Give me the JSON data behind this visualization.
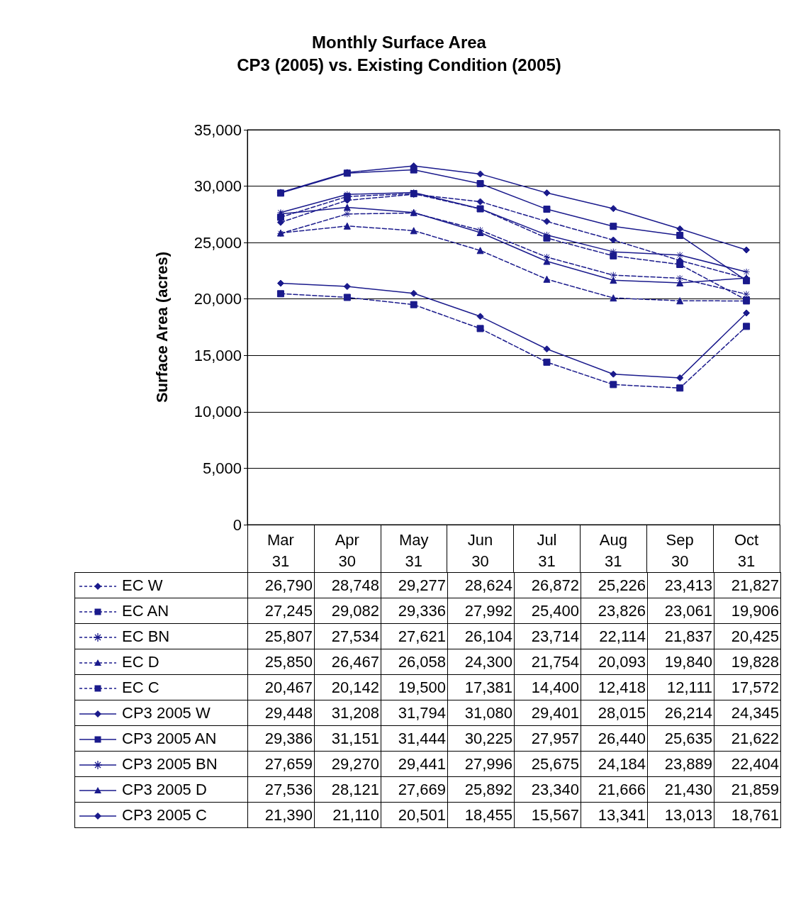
{
  "chart_data": {
    "type": "line",
    "title": "Monthly Surface Area\nCP3 (2005) vs. Existing Condition (2005)",
    "ylabel": "Surface Area (acres)",
    "categories": [
      "Mar\n31",
      "Apr\n30",
      "May\n31",
      "Jun\n30",
      "Jul\n31",
      "Aug\n31",
      "Sep\n30",
      "Oct\n31"
    ],
    "ylim": [
      0,
      35000
    ],
    "yticks": [
      0,
      {
        "value": 5000,
        "label": "5,000"
      },
      {
        "value": 10000,
        "label": "10,000"
      },
      {
        "value": 15000,
        "label": "15,000"
      },
      {
        "value": 20000,
        "label": "20,000"
      },
      {
        "value": 25000,
        "label": "25,000"
      },
      {
        "value": 30000,
        "label": "30,000"
      },
      {
        "value": 35000,
        "label": "35,000"
      }
    ],
    "grid": "y",
    "legend": "bottom",
    "series": [
      {
        "name": "EC W",
        "color": "#1a1a8c",
        "line_style": "dashed",
        "marker": "diamond",
        "values": [
          26790,
          28748,
          29277,
          28624,
          26872,
          25226,
          23413,
          21827
        ],
        "value_labels": [
          "26,790",
          "28,748",
          "29,277",
          "28,624",
          "26,872",
          "25,226",
          "23,413",
          "21,827"
        ]
      },
      {
        "name": "EC AN",
        "color": "#1a1a8c",
        "line_style": "dashed",
        "marker": "square",
        "values": [
          27245,
          29082,
          29336,
          27992,
          25400,
          23826,
          23061,
          19906
        ],
        "value_labels": [
          "27,245",
          "29,082",
          "29,336",
          "27,992",
          "25,400",
          "23,826",
          "23,061",
          "19,906"
        ]
      },
      {
        "name": "EC BN",
        "color": "#1a1a8c",
        "line_style": "dashed",
        "marker": "cross",
        "values": [
          25807,
          27534,
          27621,
          26104,
          23714,
          22114,
          21837,
          20425
        ],
        "value_labels": [
          "25,807",
          "27,534",
          "27,621",
          "26,104",
          "23,714",
          "22,114",
          "21,837",
          "20,425"
        ]
      },
      {
        "name": "EC D",
        "color": "#1a1a8c",
        "line_style": "dashed",
        "marker": "triangle",
        "values": [
          25850,
          26467,
          26058,
          24300,
          21754,
          20093,
          19840,
          19828
        ],
        "value_labels": [
          "25,850",
          "26,467",
          "26,058",
          "24,300",
          "21,754",
          "20,093",
          "19,840",
          "19,828"
        ]
      },
      {
        "name": "EC C",
        "color": "#1a1a8c",
        "line_style": "dashed",
        "marker": "square",
        "values": [
          20467,
          20142,
          19500,
          17381,
          14400,
          12418,
          12111,
          17572
        ],
        "value_labels": [
          "20,467",
          "20,142",
          "19,500",
          "17,381",
          "14,400",
          "12,418",
          "12,111",
          "17,572"
        ]
      },
      {
        "name": "CP3 2005 W",
        "color": "#1a1a8c",
        "line_style": "solid",
        "marker": "diamond",
        "values": [
          29448,
          31208,
          31794,
          31080,
          29401,
          28015,
          26214,
          24345
        ],
        "value_labels": [
          "29,448",
          "31,208",
          "31,794",
          "31,080",
          "29,401",
          "28,015",
          "26,214",
          "24,345"
        ]
      },
      {
        "name": "CP3 2005 AN",
        "color": "#1a1a8c",
        "line_style": "solid",
        "marker": "square",
        "values": [
          29386,
          31151,
          31444,
          30225,
          27957,
          26440,
          25635,
          21622
        ],
        "value_labels": [
          "29,386",
          "31,151",
          "31,444",
          "30,225",
          "27,957",
          "26,440",
          "25,635",
          "21,622"
        ]
      },
      {
        "name": "CP3 2005 BN",
        "color": "#1a1a8c",
        "line_style": "solid",
        "marker": "cross",
        "values": [
          27659,
          29270,
          29441,
          27996,
          25675,
          24184,
          23889,
          22404
        ],
        "value_labels": [
          "27,659",
          "29,270",
          "29,441",
          "27,996",
          "25,675",
          "24,184",
          "23,889",
          "22,404"
        ]
      },
      {
        "name": "CP3 2005 D",
        "color": "#1a1a8c",
        "line_style": "solid",
        "marker": "triangle",
        "values": [
          27536,
          28121,
          27669,
          25892,
          23340,
          21666,
          21430,
          21859
        ],
        "value_labels": [
          "27,536",
          "28,121",
          "27,669",
          "25,892",
          "23,340",
          "21,666",
          "21,430",
          "21,859"
        ]
      },
      {
        "name": "CP3 2005 C",
        "color": "#1a1a8c",
        "line_style": "solid",
        "marker": "diamond",
        "values": [
          21390,
          21110,
          20501,
          18455,
          15567,
          13341,
          13013,
          18761
        ],
        "value_labels": [
          "21,390",
          "21,110",
          "20,501",
          "18,455",
          "15,567",
          "13,341",
          "13,013",
          "18,761"
        ]
      }
    ]
  }
}
